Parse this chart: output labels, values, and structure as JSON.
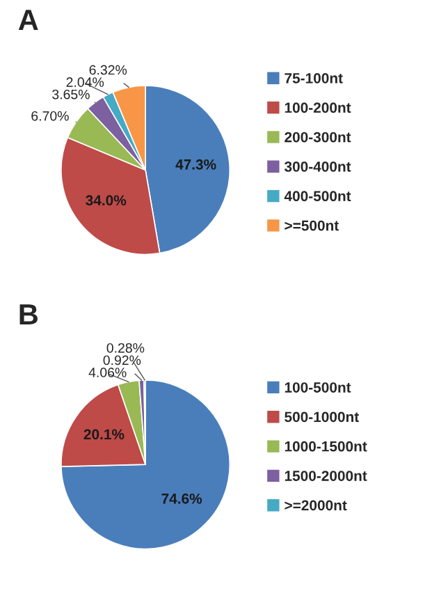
{
  "chart_data": [
    {
      "type": "pie",
      "title": "A",
      "legend": "right",
      "categories": [
        "75-100nt",
        "100-200nt",
        "200-300nt",
        "300-400nt",
        "400-500nt",
        ">=500nt"
      ],
      "values": [
        47.3,
        34.0,
        6.7,
        3.65,
        2.04,
        6.32
      ],
      "value_labels": [
        "47.3%",
        "34.0%",
        "6.70%",
        "3.65%",
        "2.04%",
        "6.32%"
      ],
      "colors": [
        "#4a7ebb",
        "#be4b48",
        "#98b954",
        "#7d60a0",
        "#46aac5",
        "#f79646"
      ]
    },
    {
      "type": "pie",
      "title": "B",
      "legend": "right",
      "categories": [
        "100-500nt",
        "500-1000nt",
        "1000-1500nt",
        "1500-2000nt",
        ">=2000nt"
      ],
      "values": [
        74.6,
        20.1,
        4.06,
        0.92,
        0.28
      ],
      "value_labels": [
        "74.6%",
        "20.1%",
        "4.06%",
        "0.92%",
        "0.28%"
      ],
      "colors": [
        "#4a7ebb",
        "#be4b48",
        "#98b954",
        "#7d60a0",
        "#46aac5"
      ]
    }
  ]
}
